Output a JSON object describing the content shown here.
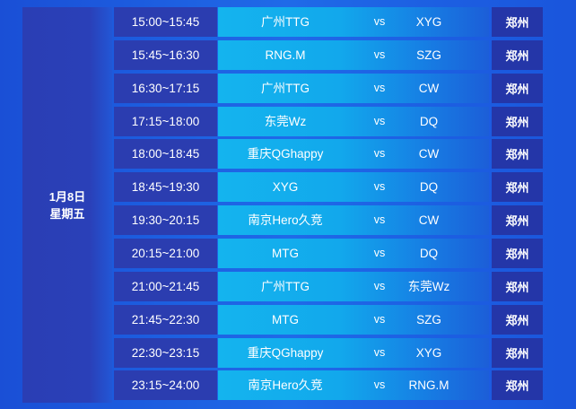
{
  "date": {
    "day": "1月8日",
    "weekday": "星期五"
  },
  "vs_label": "vs",
  "matches": [
    {
      "time": "15:00~15:45",
      "team1": "广州TTG",
      "team2": "XYG",
      "venue": "郑州"
    },
    {
      "time": "15:45~16:30",
      "team1": "RNG.M",
      "team2": "SZG",
      "venue": "郑州"
    },
    {
      "time": "16:30~17:15",
      "team1": "广州TTG",
      "team2": "CW",
      "venue": "郑州"
    },
    {
      "time": "17:15~18:00",
      "team1": "东莞Wz",
      "team2": "DQ",
      "venue": "郑州"
    },
    {
      "time": "18:00~18:45",
      "team1": "重庆QGhappy",
      "team2": "CW",
      "venue": "郑州"
    },
    {
      "time": "18:45~19:30",
      "team1": "XYG",
      "team2": "DQ",
      "venue": "郑州"
    },
    {
      "time": "19:30~20:15",
      "team1": "南京Hero久竞",
      "team2": "CW",
      "venue": "郑州"
    },
    {
      "time": "20:15~21:00",
      "team1": "MTG",
      "team2": "DQ",
      "venue": "郑州"
    },
    {
      "time": "21:00~21:45",
      "team1": "广州TTG",
      "team2": "东莞Wz",
      "venue": "郑州"
    },
    {
      "time": "21:45~22:30",
      "team1": "MTG",
      "team2": "SZG",
      "venue": "郑州"
    },
    {
      "time": "22:30~23:15",
      "team1": "重庆QGhappy",
      "team2": "XYG",
      "venue": "郑州"
    },
    {
      "time": "23:15~24:00",
      "team1": "南京Hero久竞",
      "team2": "RNG.M",
      "venue": "郑州"
    }
  ]
}
